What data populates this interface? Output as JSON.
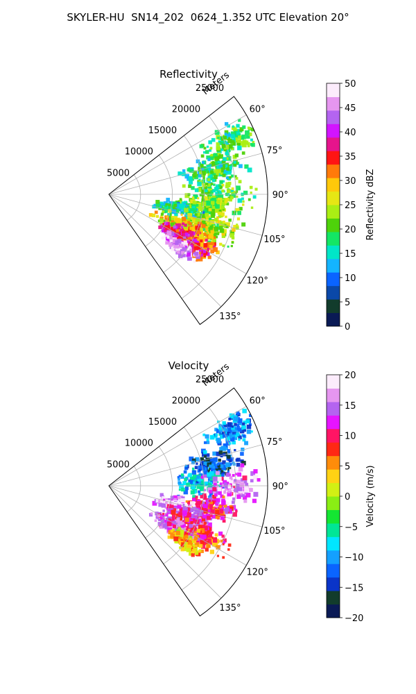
{
  "suptitle": "SKYLER-HU  SN14_202  0624_1.352 UTC Elevation 20°",
  "chart_data": [
    {
      "type": "heatmap",
      "projection": "polar-sector",
      "title": "Reflectivity",
      "range_label": "Meters",
      "range_ticks": [
        5000,
        10000,
        15000,
        20000,
        25000
      ],
      "range_tick_labels": [
        "5000",
        "10000",
        "15000",
        "20000",
        "25000"
      ],
      "rlim": [
        0,
        25000
      ],
      "azimuth_ticks": [
        60,
        75,
        90,
        105,
        120,
        135
      ],
      "azimuth_tick_labels": [
        "60°",
        "75°",
        "90°",
        "105°",
        "120°",
        "135°"
      ],
      "azimuth_range": [
        52,
        145
      ],
      "grid": true,
      "colorbar": {
        "label": "Reflectivity dBZ",
        "vmin": 0,
        "vmax": 50,
        "ticks": [
          0,
          5,
          10,
          15,
          20,
          25,
          30,
          35,
          40,
          45,
          50
        ],
        "tick_labels": [
          "0",
          "5",
          "10",
          "15",
          "20",
          "25",
          "30",
          "35",
          "40",
          "45",
          "50"
        ],
        "colors": [
          "#0a1a55",
          "#123c2c",
          "#0a48a8",
          "#0a64ff",
          "#14b4ff",
          "#00e6c8",
          "#14e664",
          "#4ed20a",
          "#aaee14",
          "#e6e614",
          "#ffc80a",
          "#ff7a0a",
          "#ff1414",
          "#e6148c",
          "#d214ff",
          "#b464f0",
          "#e696f0",
          "#fcecfc"
        ]
      },
      "blobs": [
        {
          "az": 66,
          "r": 21000,
          "dr": 3500,
          "daz": 5,
          "value": 19
        },
        {
          "az": 76,
          "r": 17000,
          "dr": 4000,
          "daz": 6,
          "value": 18
        },
        {
          "az": 88,
          "r": 17500,
          "dr": 4500,
          "daz": 9,
          "value": 20
        },
        {
          "az": 97,
          "r": 15500,
          "dr": 4000,
          "daz": 6,
          "value": 22
        },
        {
          "az": 102,
          "r": 11500,
          "dr": 3500,
          "daz": 6,
          "value": 16
        },
        {
          "az": 108,
          "r": 17000,
          "dr": 4000,
          "daz": 6,
          "value": 24
        },
        {
          "az": 113,
          "r": 13000,
          "dr": 4500,
          "daz": 6,
          "value": 27
        },
        {
          "az": 118,
          "r": 15500,
          "dr": 3500,
          "daz": 6,
          "value": 33
        },
        {
          "az": 120,
          "r": 12500,
          "dr": 2500,
          "daz": 4,
          "value": 38
        },
        {
          "az": 123,
          "r": 16000,
          "dr": 2000,
          "daz": 3,
          "value": 36
        },
        {
          "az": 127,
          "r": 14000,
          "dr": 2500,
          "daz": 4,
          "value": 46
        }
      ]
    },
    {
      "type": "heatmap",
      "projection": "polar-sector",
      "title": "Velocity",
      "range_label": "Meters",
      "range_ticks": [
        5000,
        10000,
        15000,
        20000,
        25000
      ],
      "range_tick_labels": [
        "5000",
        "10000",
        "15000",
        "20000",
        "25000"
      ],
      "rlim": [
        0,
        25000
      ],
      "azimuth_ticks": [
        60,
        75,
        90,
        105,
        120,
        135
      ],
      "azimuth_tick_labels": [
        "60°",
        "75°",
        "90°",
        "105°",
        "120°",
        "135°"
      ],
      "azimuth_range": [
        52,
        145
      ],
      "grid": true,
      "colorbar": {
        "label": "Velocity (m/s)",
        "vmin": -20,
        "vmax": 20,
        "ticks": [
          -20,
          -15,
          -10,
          -5,
          0,
          5,
          10,
          15,
          20
        ],
        "tick_labels": [
          "−20",
          "−15",
          "−10",
          "−5",
          "0",
          "5",
          "10",
          "15",
          "20"
        ],
        "colors": [
          "#0a1a55",
          "#123c2c",
          "#0a34c8",
          "#0a64ff",
          "#14a0ff",
          "#00e6ff",
          "#00e696",
          "#14e632",
          "#8aee14",
          "#d2f014",
          "#ffd214",
          "#ff8c0a",
          "#ff2814",
          "#ff1464",
          "#e614ff",
          "#b464f0",
          "#e696f0",
          "#fcecfc"
        ]
      },
      "blobs": [
        {
          "az": 66,
          "r": 21000,
          "dr": 3500,
          "daz": 5,
          "value": -11
        },
        {
          "az": 78,
          "r": 17000,
          "dr": 4000,
          "daz": 6,
          "value": -13
        },
        {
          "az": 88,
          "r": 14500,
          "dr": 3000,
          "daz": 7,
          "value": -9
        },
        {
          "az": 91,
          "r": 19500,
          "dr": 3500,
          "daz": 7,
          "value": 15
        },
        {
          "az": 102,
          "r": 16500,
          "dr": 3500,
          "daz": 5,
          "value": 10
        },
        {
          "az": 106,
          "r": 11000,
          "dr": 3000,
          "daz": 6,
          "value": 16
        },
        {
          "az": 112,
          "r": 14000,
          "dr": 3500,
          "daz": 6,
          "value": 12
        },
        {
          "az": 118,
          "r": 17000,
          "dr": 3000,
          "daz": 5,
          "value": 8
        },
        {
          "az": 122,
          "r": 12000,
          "dr": 3000,
          "daz": 5,
          "value": 14
        },
        {
          "az": 126,
          "r": 15000,
          "dr": 2500,
          "daz": 4,
          "value": 4
        }
      ]
    }
  ]
}
